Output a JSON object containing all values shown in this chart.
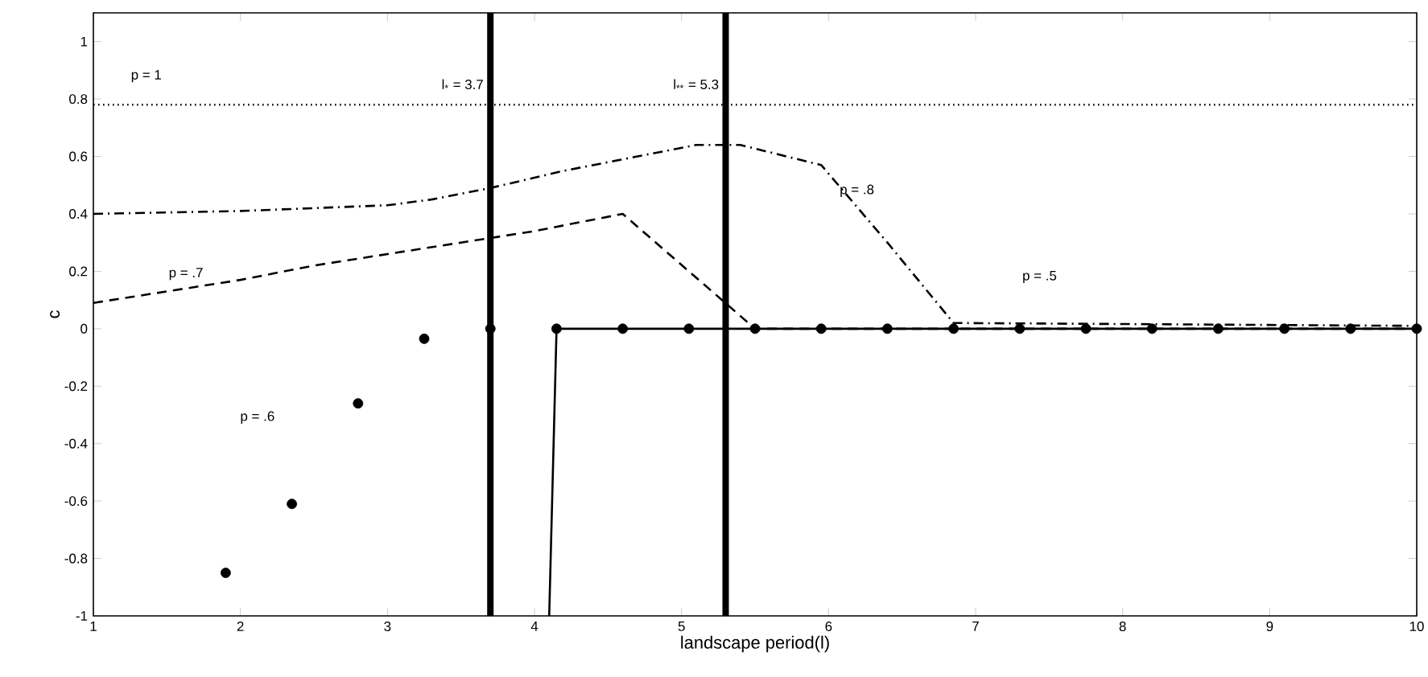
{
  "chart_data": {
    "type": "line",
    "xlabel": "landscape period(l)",
    "ylabel": "c",
    "xlim": [
      1,
      10
    ],
    "ylim": [
      -1,
      1.1
    ],
    "xticks": [
      1,
      2,
      3,
      4,
      5,
      6,
      7,
      8,
      9,
      10
    ],
    "yticks": [
      -1,
      -0.8,
      -0.6,
      -0.4,
      -0.2,
      0,
      0.2,
      0.4,
      0.6,
      0.8,
      1
    ],
    "grid": false,
    "series": [
      {
        "line_style": "dotted",
        "color": "#000000",
        "x": [
          1,
          10
        ],
        "values": [
          0.78,
          0.78
        ]
      },
      {
        "line_style": "dashdot",
        "color": "#000000",
        "x": [
          1,
          2,
          3,
          3.3,
          3.7,
          4.2,
          4.7,
          5.1,
          5.4,
          5.95,
          6.4,
          6.85,
          10
        ],
        "values": [
          0.4,
          0.41,
          0.43,
          0.45,
          0.49,
          0.55,
          0.6,
          0.64,
          0.64,
          0.57,
          0.3,
          0.02,
          0.01
        ]
      },
      {
        "line_style": "dashed",
        "color": "#000000",
        "x": [
          1,
          1.5,
          2,
          2.5,
          3,
          3.5,
          4,
          4.6,
          5.5,
          10
        ],
        "values": [
          0.09,
          0.13,
          0.17,
          0.22,
          0.26,
          0.3,
          0.34,
          0.4,
          0,
          0
        ]
      },
      {
        "line_style": "solid",
        "color": "#000000",
        "x": [
          4.1,
          4.15,
          10
        ],
        "values": [
          -1,
          0,
          0
        ]
      },
      {
        "type": "scatter",
        "marker": "circle",
        "color": "#000000",
        "x": [
          1.9,
          2.35,
          2.8,
          3.25,
          3.7,
          4.15,
          4.6,
          5.05,
          5.5,
          5.95,
          6.4,
          6.85,
          7.3,
          7.75,
          8.2,
          8.65,
          9.1,
          9.55,
          10
        ],
        "values": [
          -0.85,
          -0.61,
          -0.26,
          -0.035,
          0,
          0,
          0,
          0,
          0,
          0,
          0,
          0,
          0,
          0,
          0,
          0,
          0,
          0,
          0
        ]
      }
    ],
    "ref_lines": [
      {
        "axis": "x",
        "value": 3.7,
        "label": "l$_{*}$ = 3.7",
        "color": "#000000"
      },
      {
        "axis": "x",
        "value": 5.3,
        "label": "l$_{**}$ = 5.3",
        "color": "#000000"
      }
    ],
    "annotations": [
      "p = 1",
      "p = .7",
      "p = .8",
      "p = .5",
      "p = .6"
    ]
  }
}
